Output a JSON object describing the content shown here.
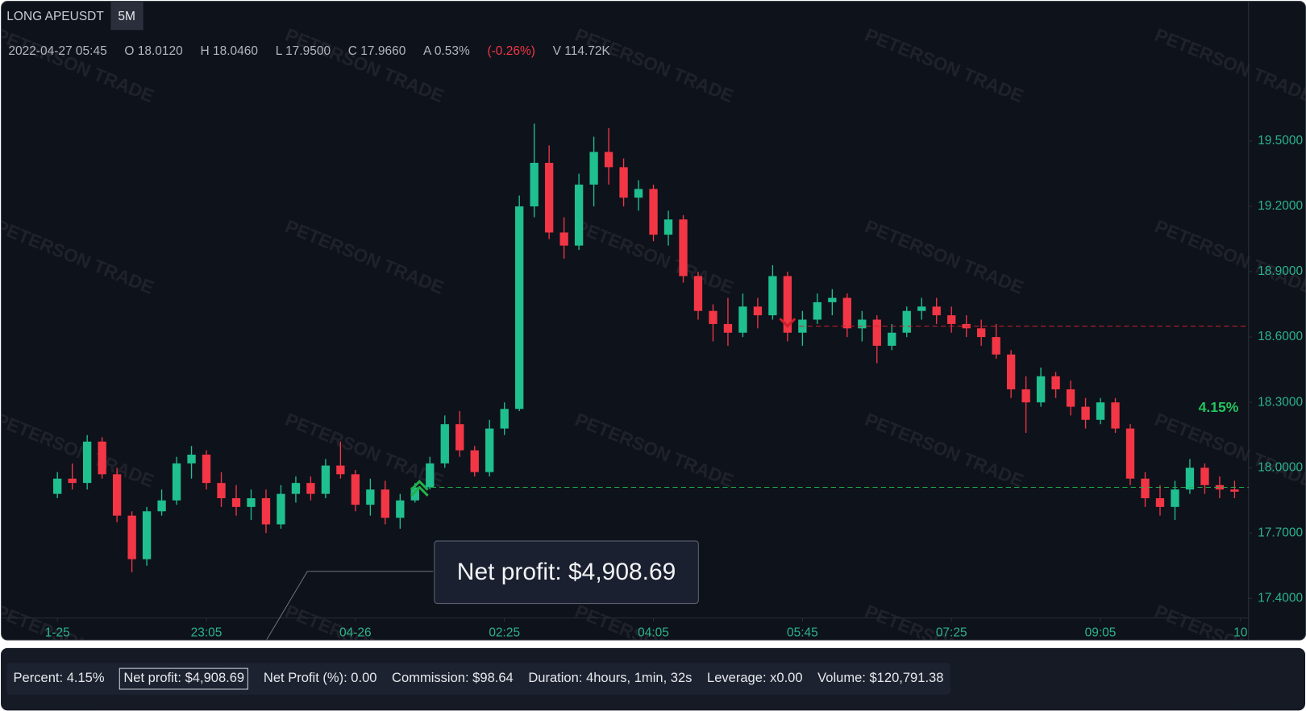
{
  "header": {
    "symbol": "LONG APEUSDT",
    "timeframe": "5M",
    "legend": [
      {
        "text": "2022-04-27 05:45",
        "color": "#b2b5be"
      },
      {
        "text": "O 18.0120",
        "color": "#b2b5be"
      },
      {
        "text": "H 18.0460",
        "color": "#b2b5be"
      },
      {
        "text": "L 17.9500",
        "color": "#b2b5be"
      },
      {
        "text": "C 17.9660",
        "color": "#b2b5be"
      },
      {
        "text": "A 0.53%",
        "color": "#b2b5be"
      },
      {
        "text": "(-0.26%)",
        "color": "#f23645"
      },
      {
        "text": "V 114.72K",
        "color": "#b2b5be"
      }
    ]
  },
  "watermark": "PETERSON TRADE",
  "tooltip": "Net profit: $4,908.69",
  "stats": [
    "Percent: 4.15%",
    "Net profit: $4,908.69",
    "Net Profit (%): 0.00",
    "Commission: $98.64",
    "Duration: 4hours, 1min, 32s",
    "Leverage: x0.00",
    "Volume: $120,791.38"
  ],
  "chart_data": {
    "type": "candlestick",
    "up_color": "#1fbf8f",
    "down_color": "#f23645",
    "open": [
      17.88,
      17.95,
      17.93,
      18.12,
      17.97,
      17.78,
      17.58,
      17.8,
      17.85,
      18.02,
      18.06,
      17.93,
      17.86,
      17.82,
      17.86,
      17.74,
      17.88,
      17.93,
      17.88,
      18.01,
      17.97,
      17.83,
      17.9,
      17.77,
      17.85,
      17.91,
      18.02,
      18.2,
      18.08,
      17.98,
      18.18,
      18.27,
      19.2,
      19.4,
      19.08,
      19.02,
      19.3,
      19.45,
      19.38,
      19.24,
      19.28,
      19.07,
      19.14,
      18.88,
      18.72,
      18.66,
      18.62,
      18.74,
      18.7,
      18.88,
      18.62,
      18.68,
      18.76,
      18.78,
      18.64,
      18.68,
      18.56,
      18.62,
      18.72,
      18.74,
      18.7,
      18.66,
      18.64,
      18.6,
      18.52,
      18.36,
      18.3,
      18.42,
      18.36,
      18.28,
      18.22,
      18.3,
      18.18,
      17.95,
      17.86,
      17.82,
      17.9,
      18.0,
      17.92,
      17.9
    ],
    "high": [
      17.98,
      18.02,
      18.15,
      18.14,
      18.0,
      17.8,
      17.82,
      17.9,
      18.05,
      18.1,
      18.08,
      17.98,
      17.92,
      17.9,
      17.9,
      17.92,
      17.96,
      17.96,
      18.04,
      18.12,
      17.99,
      17.95,
      17.94,
      17.88,
      17.93,
      18.05,
      18.24,
      18.26,
      18.1,
      18.22,
      18.3,
      19.25,
      19.58,
      19.48,
      19.15,
      19.35,
      19.52,
      19.56,
      19.42,
      19.32,
      19.3,
      19.18,
      19.16,
      18.9,
      18.75,
      18.78,
      18.8,
      18.78,
      18.93,
      18.9,
      18.72,
      18.8,
      18.82,
      18.8,
      18.72,
      18.7,
      18.66,
      18.74,
      18.78,
      18.78,
      18.74,
      18.7,
      18.68,
      18.66,
      18.54,
      18.42,
      18.46,
      18.44,
      18.4,
      18.32,
      18.32,
      18.32,
      18.2,
      17.98,
      17.92,
      17.94,
      18.04,
      18.02,
      17.96,
      17.94
    ],
    "low": [
      17.86,
      17.9,
      17.9,
      17.95,
      17.75,
      17.52,
      17.55,
      17.78,
      17.83,
      17.95,
      17.9,
      17.82,
      17.78,
      17.76,
      17.7,
      17.72,
      17.84,
      17.85,
      17.86,
      17.95,
      17.8,
      17.78,
      17.74,
      17.72,
      17.84,
      17.9,
      18.0,
      18.05,
      17.96,
      17.96,
      18.15,
      18.26,
      19.15,
      19.05,
      18.96,
      19.0,
      19.2,
      19.3,
      19.2,
      19.18,
      19.04,
      19.02,
      18.85,
      18.68,
      18.58,
      18.56,
      18.6,
      18.64,
      18.68,
      18.58,
      18.56,
      18.66,
      18.7,
      18.6,
      18.58,
      18.48,
      18.54,
      18.6,
      18.68,
      18.66,
      18.62,
      18.6,
      18.56,
      18.5,
      18.32,
      18.16,
      18.28,
      18.32,
      18.24,
      18.18,
      18.2,
      18.16,
      17.92,
      17.82,
      17.78,
      17.76,
      17.88,
      17.88,
      17.86,
      17.86
    ],
    "close": [
      17.95,
      17.93,
      18.12,
      17.97,
      17.78,
      17.58,
      17.8,
      17.85,
      18.02,
      18.06,
      17.93,
      17.86,
      17.82,
      17.86,
      17.74,
      17.88,
      17.93,
      17.88,
      18.01,
      17.97,
      17.83,
      17.9,
      17.77,
      17.85,
      17.91,
      18.02,
      18.2,
      18.08,
      17.98,
      18.18,
      18.27,
      19.2,
      19.4,
      19.08,
      19.02,
      19.3,
      19.45,
      19.38,
      19.24,
      19.28,
      19.07,
      19.14,
      18.88,
      18.72,
      18.66,
      18.62,
      18.74,
      18.7,
      18.88,
      18.62,
      18.68,
      18.76,
      18.78,
      18.64,
      18.68,
      18.56,
      18.62,
      18.72,
      18.74,
      18.7,
      18.66,
      18.64,
      18.6,
      18.52,
      18.36,
      18.3,
      18.42,
      18.36,
      18.28,
      18.22,
      18.3,
      18.18,
      17.95,
      17.86,
      17.82,
      17.9,
      18.0,
      17.92,
      17.9,
      17.89
    ],
    "xlim": [
      -3.74,
      79.94
    ],
    "xticks": [
      {
        "value": 0,
        "label": "1-25"
      },
      {
        "value": 10,
        "label": "23:05"
      },
      {
        "value": 20,
        "label": "04-26"
      },
      {
        "value": 30,
        "label": "02:25"
      },
      {
        "value": 40,
        "label": "04:05"
      },
      {
        "value": 50,
        "label": "05:45"
      },
      {
        "value": 60,
        "label": "07:25"
      },
      {
        "value": 70,
        "label": "09:05"
      },
      {
        "value": 79.4,
        "label": "10"
      }
    ],
    "ylim": [
      17.31,
      20.14
    ],
    "yticks": [
      {
        "value": 19.5,
        "label": "19.5000"
      },
      {
        "value": 19.2,
        "label": "19.2000"
      },
      {
        "value": 18.9,
        "label": "18.9000"
      },
      {
        "value": 18.6,
        "label": "18.6000"
      },
      {
        "value": 18.3,
        "label": "18.3000"
      },
      {
        "value": 18.0,
        "label": "18.0000"
      },
      {
        "value": 17.7,
        "label": "17.7000"
      },
      {
        "value": 17.4,
        "label": "17.4000"
      }
    ],
    "entry": {
      "index": 24.3,
      "price": 17.91,
      "color": "#22b04a"
    },
    "exit": {
      "index": 49,
      "price": 18.65,
      "color": "#d0202a"
    },
    "percent_label": "4.15%"
  }
}
